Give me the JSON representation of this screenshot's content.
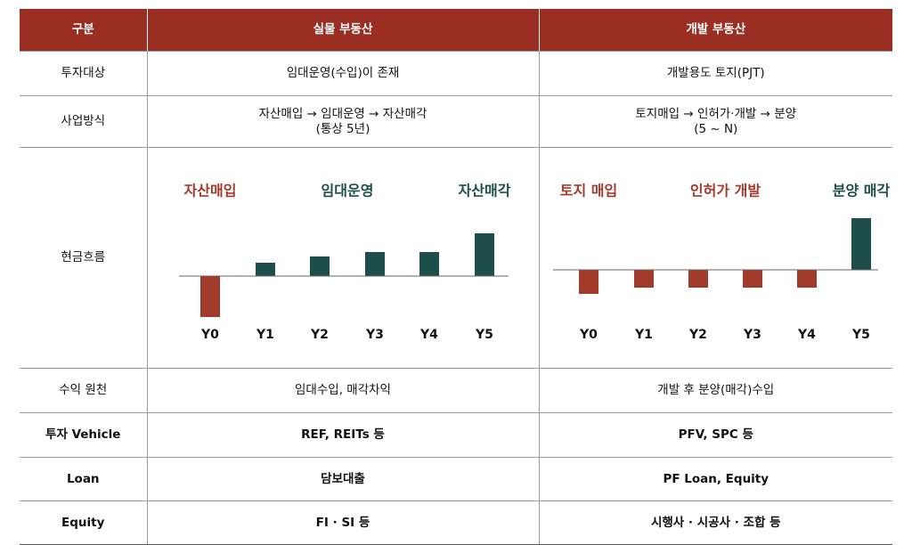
{
  "table": {
    "header": [
      "구분",
      "실물 부동산",
      "개발 부동산"
    ],
    "rows": [
      {
        "label": "투자대상",
        "cells": [
          [
            "임대운영(수입)이 존재"
          ],
          [
            "개발용도 토지(PJT)"
          ]
        ]
      },
      {
        "label": "사업방식",
        "cells": [
          [
            "자산매입 → 임대운영 → 자산매각",
            "(통상 5년)"
          ],
          [
            "토지매입 → 인허가·개발 → 분양",
            "(5 ~ N)"
          ]
        ]
      },
      {
        "label": "현금흐름",
        "charts": [
          {
            "type": "bar",
            "phases": [
              {
                "text": "자산매입",
                "color": "#a23a2c"
              },
              {
                "text": "임대운영",
                "color": "#1e4e4a"
              },
              {
                "text": "자산매각",
                "color": "#1e4e4a"
              }
            ],
            "categories": [
              "Y0",
              "Y1",
              "Y2",
              "Y3",
              "Y4",
              "Y5"
            ],
            "values": [
              -46,
              15,
              22,
              27,
              27,
              48
            ],
            "colors": [
              "#a23a2c",
              "#1e4e4a",
              "#1e4e4a",
              "#1e4e4a",
              "#1e4e4a",
              "#1e4e4a"
            ],
            "ylim": [
              -60,
              60
            ]
          },
          {
            "type": "bar",
            "phases": [
              {
                "text": "토지 매입",
                "color": "#a23a2c"
              },
              {
                "text": "인허가 개발",
                "color": "#a23a2c"
              },
              {
                "text": "분양 매각",
                "color": "#1e4e4a"
              }
            ],
            "categories": [
              "Y0",
              "Y1",
              "Y2",
              "Y3",
              "Y4",
              "Y5"
            ],
            "values": [
              -27,
              -20,
              -20,
              -20,
              -20,
              58
            ],
            "colors": [
              "#a23a2c",
              "#a23a2c",
              "#a23a2c",
              "#a23a2c",
              "#a23a2c",
              "#1e4e4a"
            ],
            "ylim": [
              -60,
              60
            ]
          }
        ]
      },
      {
        "label": "수익 원천",
        "cells": [
          [
            "임대수입, 매각차익"
          ],
          [
            "개발 후 분양(매각)수입"
          ]
        ]
      },
      {
        "label": "투자 Vehicle",
        "cells": [
          [
            "REF, REITs 등"
          ],
          [
            "PFV, SPC 등"
          ]
        ]
      },
      {
        "label": "Loan",
        "cells": [
          [
            "담보대출"
          ],
          [
            "PF Loan, Equity"
          ]
        ]
      },
      {
        "label": "Equity",
        "cells": [
          [
            "FI · SI 등"
          ],
          [
            "시행사 · 시공사 · 조합 등"
          ]
        ]
      }
    ]
  }
}
